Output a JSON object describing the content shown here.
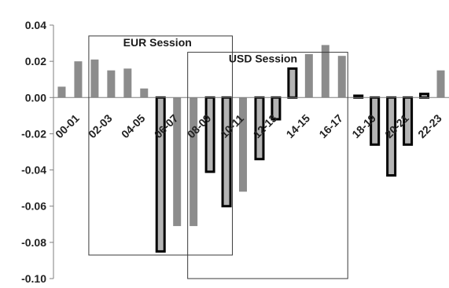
{
  "chart_data": {
    "type": "bar",
    "ylim": [
      -0.1,
      0.04
    ],
    "y_ticks": [
      "0.04",
      "0.02",
      "0.00",
      "-0.02",
      "-0.04",
      "-0.06",
      "-0.08",
      "-0.10"
    ],
    "y_tick_values": [
      0.04,
      0.02,
      0.0,
      -0.02,
      -0.04,
      -0.06,
      -0.08,
      -0.1
    ],
    "x_tick_labels": [
      "00-01",
      "02-03",
      "04-05",
      "06-07",
      "08-09",
      "10-11",
      "12-13",
      "14-15",
      "16-17",
      "18-19",
      "20-21",
      "22-23"
    ],
    "categories": [
      "00",
      "01",
      "02",
      "03",
      "04",
      "05",
      "06",
      "07",
      "08",
      "09",
      "10",
      "11",
      "12",
      "13",
      "14",
      "15",
      "16",
      "17",
      "18",
      "19",
      "20",
      "21",
      "22",
      "23"
    ],
    "values": [
      0.006,
      0.02,
      0.021,
      0.015,
      0.016,
      0.005,
      -0.085,
      -0.071,
      -0.071,
      -0.041,
      -0.06,
      -0.052,
      -0.034,
      -0.012,
      0.016,
      0.024,
      0.029,
      0.023,
      0.001,
      -0.026,
      -0.043,
      -0.026,
      0.002,
      0.015
    ],
    "highlighted": [
      false,
      false,
      false,
      false,
      false,
      false,
      true,
      false,
      false,
      true,
      true,
      false,
      true,
      true,
      true,
      false,
      false,
      false,
      true,
      true,
      true,
      true,
      true,
      false
    ],
    "colors": {
      "plain_bar": "#8c8c8c",
      "highlight_fill": "#b4b4b4",
      "highlight_border": "#000000",
      "axis": "#7f7f7f",
      "box": "#3a3a3a"
    },
    "annotations": [
      {
        "label": "EUR Session",
        "first_hour": 2,
        "last_hour": 10,
        "y_top": 0.034,
        "y_bottom": -0.087
      },
      {
        "label": "USD  Session",
        "first_hour": 8,
        "last_hour": 17,
        "y_top": 0.025,
        "y_bottom": -0.1
      }
    ],
    "grid": false,
    "legend": "none"
  }
}
